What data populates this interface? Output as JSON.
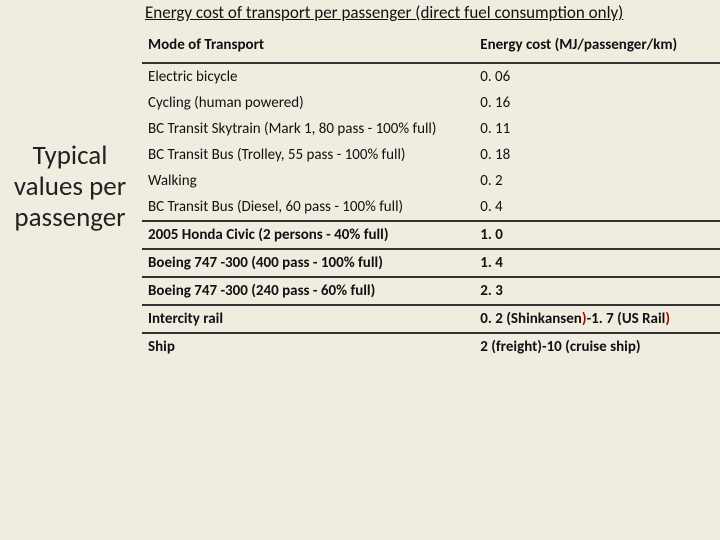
{
  "title": "Energy cost of transport per passenger (direct fuel consumption only)",
  "left_label": "Typical values per passenger",
  "header": {
    "mode": "Mode of Transport",
    "cost": "Energy cost (MJ/passenger/km)"
  },
  "rows": [
    {
      "mode": "Electric bicycle",
      "cost": "0. 06",
      "bold": false,
      "divider": false
    },
    {
      "mode": "Cycling (human powered)",
      "cost": "0. 16",
      "bold": false,
      "divider": false
    },
    {
      "mode": "BC Transit Skytrain (Mark 1, 80 pass - 100% full)",
      "cost": "0. 11",
      "bold": false,
      "divider": false
    },
    {
      "mode": "BC Transit Bus (Trolley, 55 pass - 100% full)",
      "cost": "0. 18",
      "bold": false,
      "divider": false
    },
    {
      "mode": "Walking",
      "cost": "0. 2",
      "bold": false,
      "divider": false
    },
    {
      "mode": "BC Transit Bus (Diesel, 60 pass - 100% full)",
      "cost": "0. 4",
      "bold": false,
      "divider": true
    },
    {
      "mode": "2005 Honda Civic (2 persons - 40% full)",
      "cost": "1. 0",
      "bold": true,
      "divider": true
    },
    {
      "mode": "Boeing 747 -300 (400 pass - 100% full)",
      "cost": "1. 4",
      "bold": true,
      "divider": true
    },
    {
      "mode": "Boeing 747 -300 (240 pass - 60% full)",
      "cost": "2. 3",
      "bold": true,
      "divider": true
    },
    {
      "mode": "Intercity rail",
      "cost_html": "0. 2 (Shinkansen<span class='red-paren'>)</span>-1. 7 (US Rail<span class='red-paren'>)</span>",
      "bold": true,
      "divider": true
    },
    {
      "mode": "Ship",
      "cost": "2 (freight)-10 (cruise ship)",
      "bold": true,
      "divider": false
    }
  ],
  "colors": {
    "background": "#eeede0",
    "text": "#111111",
    "rule": "#333333",
    "accent_red": "#b00000"
  },
  "typography": {
    "title_fontsize": 17,
    "left_label_fontsize": 27,
    "table_fontsize": 15,
    "font_family": "Calibri"
  }
}
